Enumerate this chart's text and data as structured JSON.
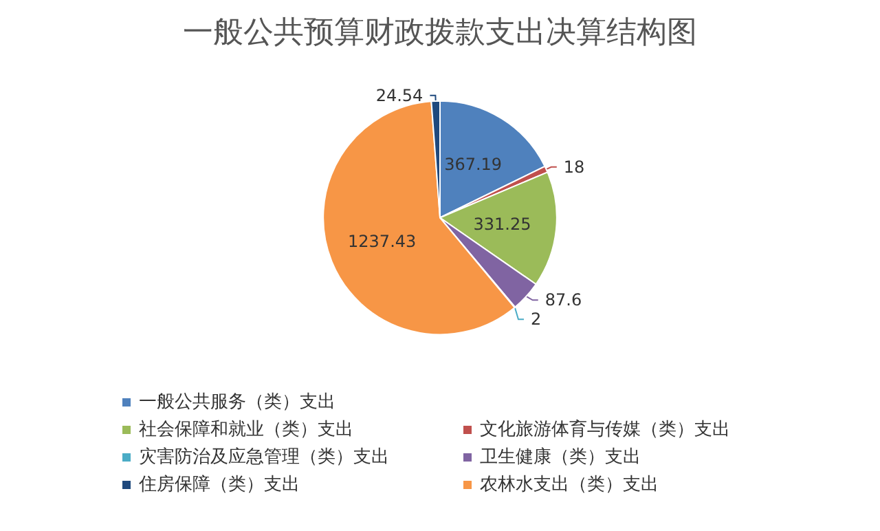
{
  "chart_data": {
    "type": "pie",
    "title": "一般公共预算财政拨款支出决算结构图",
    "categories": [
      "一般公共服务（类）支出",
      "文化旅游体育与传媒（类）支出",
      "社会保障和就业（类）支出",
      "卫生健康（类）支出",
      "灾害防治及应急管理（类）支出",
      "农林水支出（类）支出",
      "住房保障（类）支出"
    ],
    "values": [
      367.19,
      18,
      331.25,
      87.6,
      2,
      1237.43,
      24.54
    ],
    "colors": [
      "#4f81bd",
      "#c0504d",
      "#9bbb59",
      "#8064a2",
      "#4bacc6",
      "#f79646",
      "#1f497d"
    ],
    "data_labels": true,
    "legend": "bottom"
  }
}
